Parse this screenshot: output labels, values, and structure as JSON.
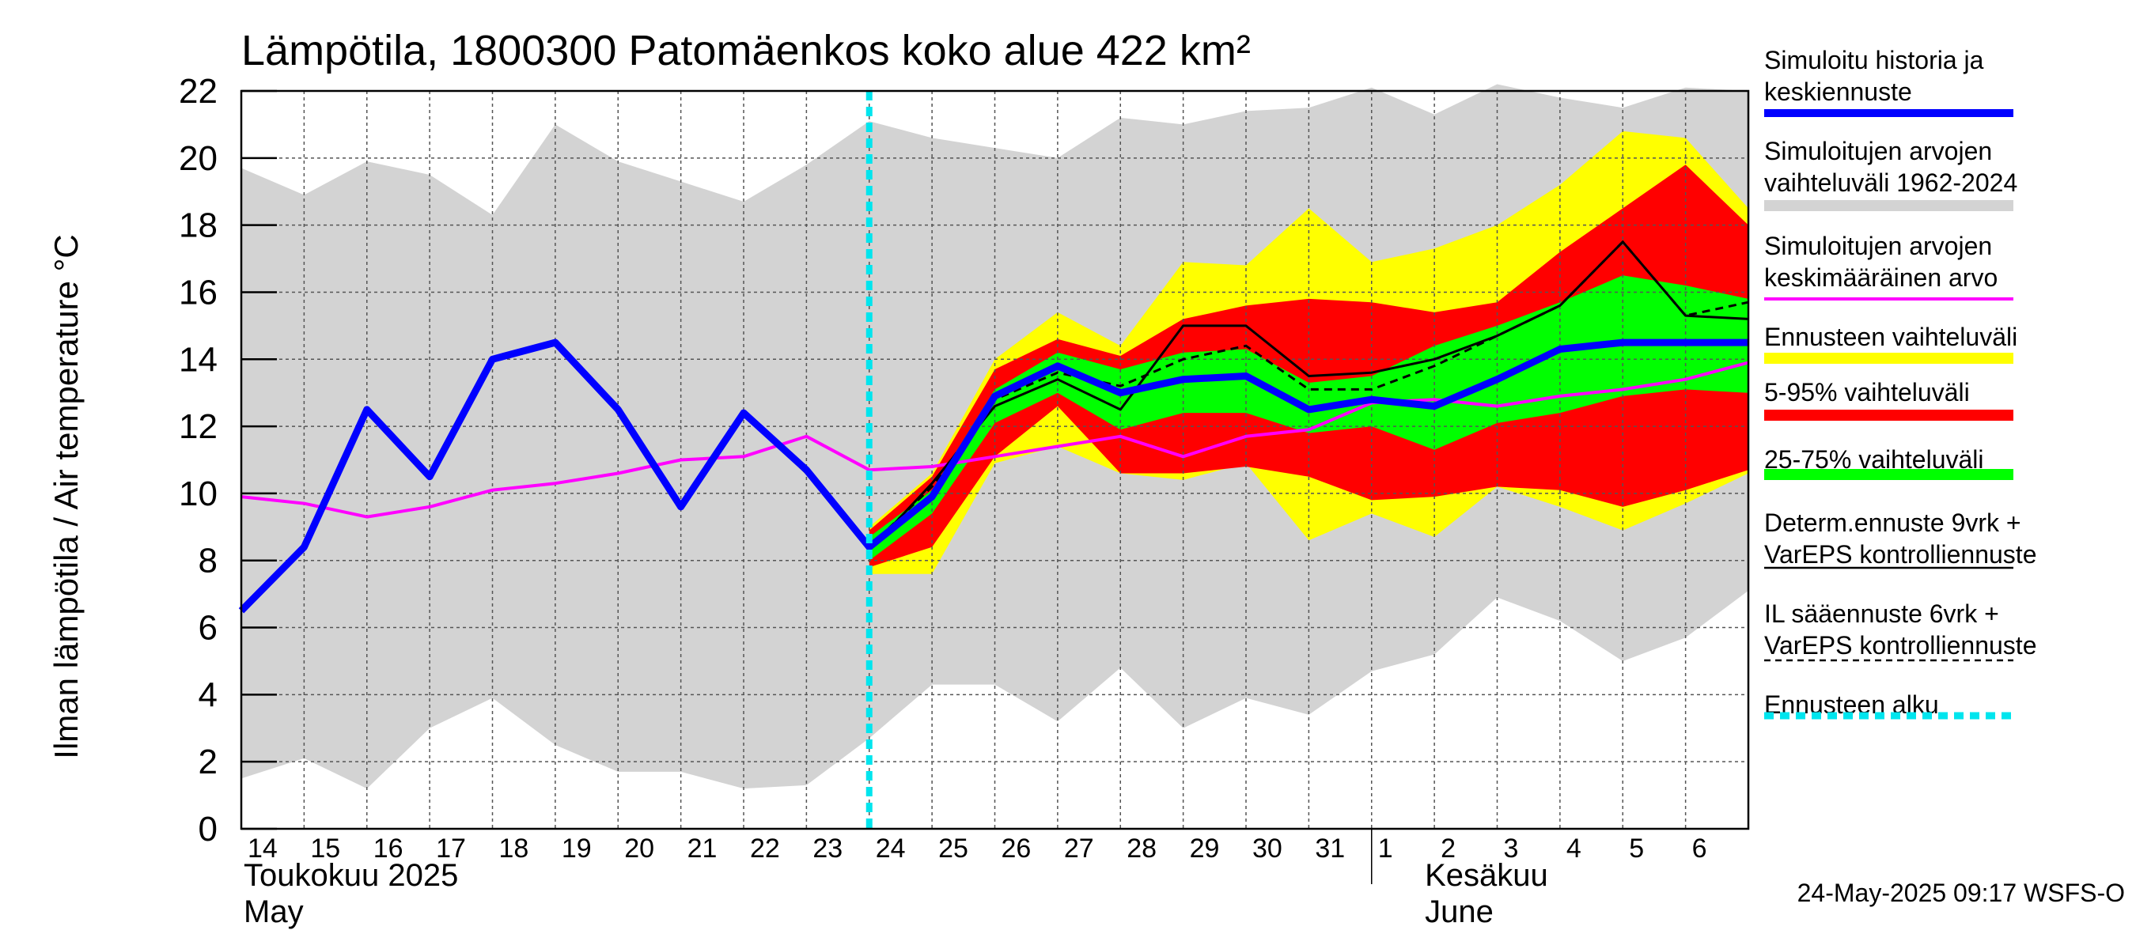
{
  "chart_data": {
    "type": "line",
    "title": "Lämpötila, 1800300 Patomäenkos koko alue 422 km²",
    "ylabel": "Ilman lämpötila / Air temperature   °C",
    "ylim": [
      0,
      22
    ],
    "yticks": [
      0,
      2,
      4,
      6,
      8,
      10,
      12,
      14,
      16,
      18,
      20,
      22
    ],
    "grid": true,
    "legend_position": "right",
    "x_tick_labels": [
      "14",
      "15",
      "16",
      "17",
      "18",
      "19",
      "20",
      "21",
      "22",
      "23",
      "24",
      "25",
      "26",
      "27",
      "28",
      "29",
      "30",
      "31",
      "1",
      "2",
      "3",
      "4",
      "5",
      "6"
    ],
    "month_labels": [
      {
        "fi": "Toukokuu  2025",
        "en": "May"
      },
      {
        "fi": "Kesäkuu",
        "en": "June"
      }
    ],
    "forecast_start_day": 24,
    "footer": "24-May-2025 09:17 WSFS-O",
    "bands": {
      "historical_range": {
        "x": [
          14,
          15,
          16,
          17,
          18,
          19,
          20,
          21,
          22,
          23,
          24,
          25,
          26,
          27,
          28,
          29,
          30,
          31,
          32,
          33,
          34,
          35,
          36,
          37,
          38
        ],
        "upper": [
          19.7,
          18.9,
          19.9,
          19.5,
          18.3,
          21.0,
          19.9,
          19.3,
          18.7,
          19.8,
          21.1,
          20.6,
          20.3,
          20.0,
          21.2,
          21.0,
          21.4,
          21.5,
          22.1,
          21.3,
          22.2,
          21.8,
          21.5,
          22.1,
          22.0
        ],
        "lower": [
          1.5,
          2.1,
          1.2,
          3.0,
          3.9,
          2.5,
          1.7,
          1.7,
          1.2,
          1.3,
          2.7,
          4.3,
          4.3,
          3.2,
          4.8,
          3.0,
          3.9,
          3.4,
          4.7,
          5.2,
          6.9,
          6.2,
          5.0,
          5.7,
          7.1
        ]
      },
      "forecast_range": {
        "x": [
          24,
          25,
          26,
          27,
          28,
          29,
          30,
          31,
          32,
          33,
          34,
          35,
          36,
          37,
          38
        ],
        "upper": [
          9.0,
          10.6,
          14.0,
          15.4,
          14.4,
          16.9,
          16.8,
          18.5,
          16.9,
          17.3,
          18.0,
          19.2,
          20.8,
          20.6,
          18.5
        ],
        "lower": [
          7.6,
          7.6,
          10.9,
          11.4,
          10.6,
          10.4,
          10.9,
          8.6,
          9.4,
          8.7,
          10.2,
          9.6,
          8.9,
          9.7,
          10.6
        ]
      },
      "p5_95": {
        "x": [
          24,
          25,
          26,
          27,
          28,
          29,
          30,
          31,
          32,
          33,
          34,
          35,
          36,
          37,
          38
        ],
        "upper": [
          8.9,
          10.5,
          13.7,
          14.6,
          14.1,
          15.2,
          15.6,
          15.8,
          15.7,
          15.4,
          15.7,
          17.2,
          18.5,
          19.8,
          18.0
        ],
        "lower": [
          7.8,
          8.4,
          11.1,
          12.6,
          10.6,
          10.6,
          10.8,
          10.5,
          9.8,
          9.9,
          10.2,
          10.1,
          9.6,
          10.1,
          10.7
        ]
      },
      "p25_75": {
        "x": [
          24,
          25,
          26,
          27,
          28,
          29,
          30,
          31,
          32,
          33,
          34,
          35,
          36,
          37,
          38
        ],
        "upper": [
          8.7,
          10.1,
          13.1,
          14.2,
          13.7,
          14.2,
          14.3,
          13.3,
          13.5,
          14.4,
          15.0,
          15.7,
          16.5,
          16.2,
          15.8
        ],
        "lower": [
          8.0,
          9.4,
          12.1,
          13.0,
          11.9,
          12.4,
          12.4,
          11.8,
          12.0,
          11.3,
          12.1,
          12.4,
          12.9,
          13.1,
          13.0
        ]
      }
    },
    "series": [
      {
        "name": "Simuloitu historia ja keskiennuste",
        "color": "#0000ff",
        "x": [
          14,
          15,
          16,
          17,
          18,
          19,
          20,
          21,
          22,
          23,
          24,
          25,
          26,
          27,
          28,
          29,
          30,
          31,
          32,
          33,
          34,
          35,
          36,
          37,
          38
        ],
        "y": [
          6.5,
          8.4,
          12.5,
          10.5,
          14.0,
          14.5,
          12.5,
          9.6,
          12.4,
          10.7,
          8.4,
          9.9,
          12.9,
          13.8,
          13.0,
          13.4,
          13.5,
          12.5,
          12.8,
          12.6,
          13.4,
          14.3,
          14.5,
          14.5,
          14.5
        ]
      },
      {
        "name": "Simuloitujen arvojen keskimääräinen arvo",
        "color": "#ff00ff",
        "x": [
          14,
          15,
          16,
          17,
          18,
          19,
          20,
          21,
          22,
          23,
          24,
          25,
          26,
          27,
          28,
          29,
          30,
          31,
          32,
          33,
          34,
          35,
          36,
          37,
          38
        ],
        "y": [
          9.9,
          9.7,
          9.3,
          9.6,
          10.1,
          10.3,
          10.6,
          11.0,
          11.1,
          11.7,
          10.7,
          10.8,
          11.1,
          11.4,
          11.7,
          11.1,
          11.7,
          11.9,
          12.7,
          12.8,
          12.6,
          12.9,
          13.1,
          13.4,
          13.9
        ]
      },
      {
        "name": "Determ.ennuste 9vrk + VarEPS kontrolliennuste",
        "color": "#000000",
        "x": [
          22,
          23,
          24,
          25,
          26,
          27,
          28,
          29,
          30,
          31,
          32,
          33,
          34,
          35,
          36,
          37,
          38
        ],
        "y": [
          12.4,
          10.6,
          8.3,
          10.3,
          12.6,
          13.4,
          12.5,
          15.0,
          15.0,
          13.5,
          13.6,
          14.0,
          14.7,
          15.6,
          17.5,
          15.3,
          15.2
        ]
      },
      {
        "name": "IL sääennuste 6vrk + VarEPS kontrolliennuste",
        "color": "#000000",
        "dashed": true,
        "x": [
          24,
          25,
          26,
          27,
          28,
          29,
          30,
          31,
          32,
          33,
          34,
          35,
          36,
          37,
          38
        ],
        "y": [
          8.4,
          10.2,
          12.8,
          13.6,
          13.2,
          14.0,
          14.4,
          13.1,
          13.1,
          13.8,
          14.7,
          15.6,
          17.5,
          15.3,
          15.7
        ]
      }
    ],
    "legend": [
      {
        "lines": [
          "Simuloitu historia ja",
          "keskiennuste"
        ],
        "color": "#0000ff",
        "style": "thick"
      },
      {
        "lines": [
          "Simuloitujen arvojen",
          "vaihteluväli 1962-2024"
        ],
        "color": "#d3d3d3",
        "style": "band"
      },
      {
        "lines": [
          "Simuloitujen arvojen",
          "keskimääräinen arvo"
        ],
        "color": "#ff00ff",
        "style": "line"
      },
      {
        "lines": [
          "Ennusteen vaihteluväli"
        ],
        "color": "#ffff00",
        "style": "band"
      },
      {
        "lines": [
          "5-95% vaihteluväli"
        ],
        "color": "#ff0000",
        "style": "band"
      },
      {
        "lines": [
          "25-75% vaihteluväli"
        ],
        "color": "#00ff00",
        "style": "band"
      },
      {
        "lines": [
          "Determ.ennuste 9vrk +",
          "VarEPS kontrolliennuste"
        ],
        "color": "#000000",
        "style": "thin"
      },
      {
        "lines": [
          "IL sääennuste 6vrk  +",
          "  VarEPS kontrolliennuste"
        ],
        "color": "#000000",
        "style": "dashed"
      },
      {
        "lines": [
          "Ennusteen alku"
        ],
        "color": "#00e5ee",
        "style": "dotted"
      }
    ]
  }
}
